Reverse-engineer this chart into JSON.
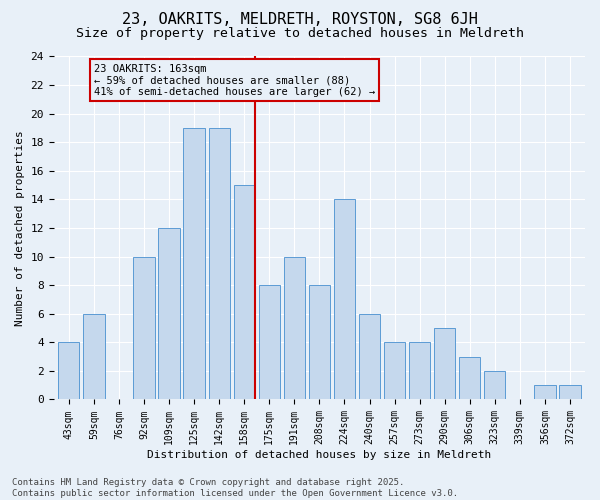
{
  "title": "23, OAKRITS, MELDRETH, ROYSTON, SG8 6JH",
  "subtitle": "Size of property relative to detached houses in Meldreth",
  "xlabel": "Distribution of detached houses by size in Meldreth",
  "ylabel": "Number of detached properties",
  "categories": [
    "43sqm",
    "59sqm",
    "76sqm",
    "92sqm",
    "109sqm",
    "125sqm",
    "142sqm",
    "158sqm",
    "175sqm",
    "191sqm",
    "208sqm",
    "224sqm",
    "240sqm",
    "257sqm",
    "273sqm",
    "290sqm",
    "306sqm",
    "323sqm",
    "339sqm",
    "356sqm",
    "372sqm"
  ],
  "values": [
    4,
    6,
    0,
    10,
    12,
    19,
    19,
    15,
    8,
    10,
    8,
    14,
    6,
    4,
    4,
    5,
    3,
    2,
    0,
    1,
    1
  ],
  "bar_color": "#c5d8ed",
  "bar_edge_color": "#5b9bd5",
  "reference_line_color": "#cc0000",
  "reference_bar_index": 7,
  "annotation_text": "23 OAKRITS: 163sqm\n← 59% of detached houses are smaller (88)\n41% of semi-detached houses are larger (62) →",
  "annotation_box_color": "#cc0000",
  "ylim": [
    0,
    24
  ],
  "yticks": [
    0,
    2,
    4,
    6,
    8,
    10,
    12,
    14,
    16,
    18,
    20,
    22,
    24
  ],
  "background_color": "#e8f0f8",
  "grid_color": "#ffffff",
  "footer_text": "Contains HM Land Registry data © Crown copyright and database right 2025.\nContains public sector information licensed under the Open Government Licence v3.0.",
  "title_fontsize": 11,
  "subtitle_fontsize": 9.5,
  "ylabel_fontsize": 8,
  "xlabel_fontsize": 8,
  "tick_fontsize": 7,
  "footer_fontsize": 6.5,
  "annotation_fontsize": 7.5
}
